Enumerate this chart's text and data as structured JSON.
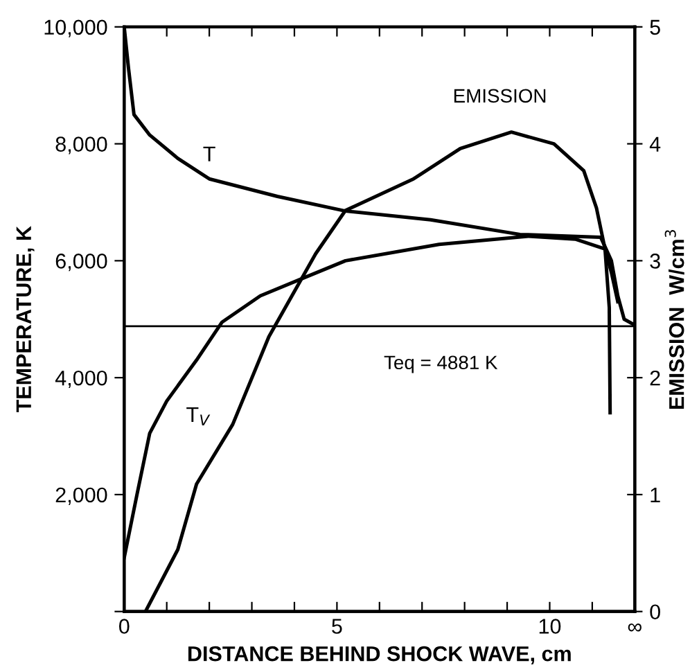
{
  "chart_data": {
    "type": "line",
    "xlabel": "DISTANCE BEHIND SHOCK WAVE, cm",
    "ylabel": "TEMPERATURE, K",
    "y2label": "EMISSION  W/cm$^{3}$",
    "xlim": [
      0,
      12
    ],
    "xticks": [
      0,
      {
        "value": 1,
        "label": null
      },
      {
        "value": 2,
        "label": null
      },
      {
        "value": 3,
        "label": null
      },
      {
        "value": 4,
        "label": null
      },
      5,
      {
        "value": 6,
        "label": null
      },
      {
        "value": 7,
        "label": null
      },
      {
        "value": 8,
        "label": null
      },
      {
        "value": 9,
        "label": null
      },
      10,
      {
        "value": 11,
        "label": null
      },
      {
        "value": 12,
        "label": "∞"
      }
    ],
    "ylim": [
      0,
      10000
    ],
    "yticks": [
      {
        "value": 0,
        "label": null
      },
      {
        "value": 2000,
        "label": "2,000"
      },
      {
        "value": 4000,
        "label": "4,000"
      },
      {
        "value": 6000,
        "label": "6,000"
      },
      {
        "value": 8000,
        "label": "8,000"
      },
      {
        "value": 10000,
        "label": "10,000"
      }
    ],
    "y2lim": [
      0,
      5
    ],
    "y2ticks": [
      0,
      1,
      2,
      3,
      4,
      5
    ],
    "grid": false,
    "legend": false,
    "marker": "none",
    "line_style": "solid",
    "series": [
      {
        "name": "T",
        "color": "#000000",
        "x": [
          0,
          0.1,
          0.23,
          0.6,
          1.26,
          2.0,
          3.6,
          5.2,
          7.2,
          9.3,
          11.2,
          11.45,
          11.6,
          11.75,
          12
        ],
        "values": [
          10000,
          9300,
          8500,
          8150,
          7750,
          7400,
          7100,
          6850,
          6700,
          6450,
          6400,
          6000,
          5400,
          5000,
          4900
        ]
      },
      {
        "name": "T$_{V}$",
        "color": "#000000",
        "x": [
          0,
          0.3,
          0.6,
          1.0,
          1.7,
          2.3,
          3.2,
          4.2,
          5.2,
          7.4,
          9.5,
          10.6,
          11.3,
          11.45,
          11.6
        ],
        "values": [
          920,
          2000,
          3050,
          3600,
          4300,
          4950,
          5400,
          5700,
          6000,
          6280,
          6420,
          6370,
          6200,
          5800,
          5300
        ]
      },
      {
        "name": "EMISSION",
        "color": "#000000",
        "axis": "y2",
        "x": [
          0.5,
          1.26,
          1.7,
          2.55,
          3.4,
          4.5,
          5.2,
          6.8,
          7.9,
          9.1,
          10.1,
          10.8,
          11.1,
          11.3,
          11.4,
          11.42
        ],
        "values": [
          0,
          0.53,
          1.09,
          1.6,
          2.35,
          3.06,
          3.43,
          3.7,
          3.96,
          4.1,
          4.0,
          3.77,
          3.45,
          3.1,
          2.6,
          1.7
        ]
      }
    ],
    "ref_lines": [
      {
        "axis": "y",
        "value": 4881,
        "label": "Teq = 4881 K",
        "color": "#000000"
      }
    ]
  }
}
